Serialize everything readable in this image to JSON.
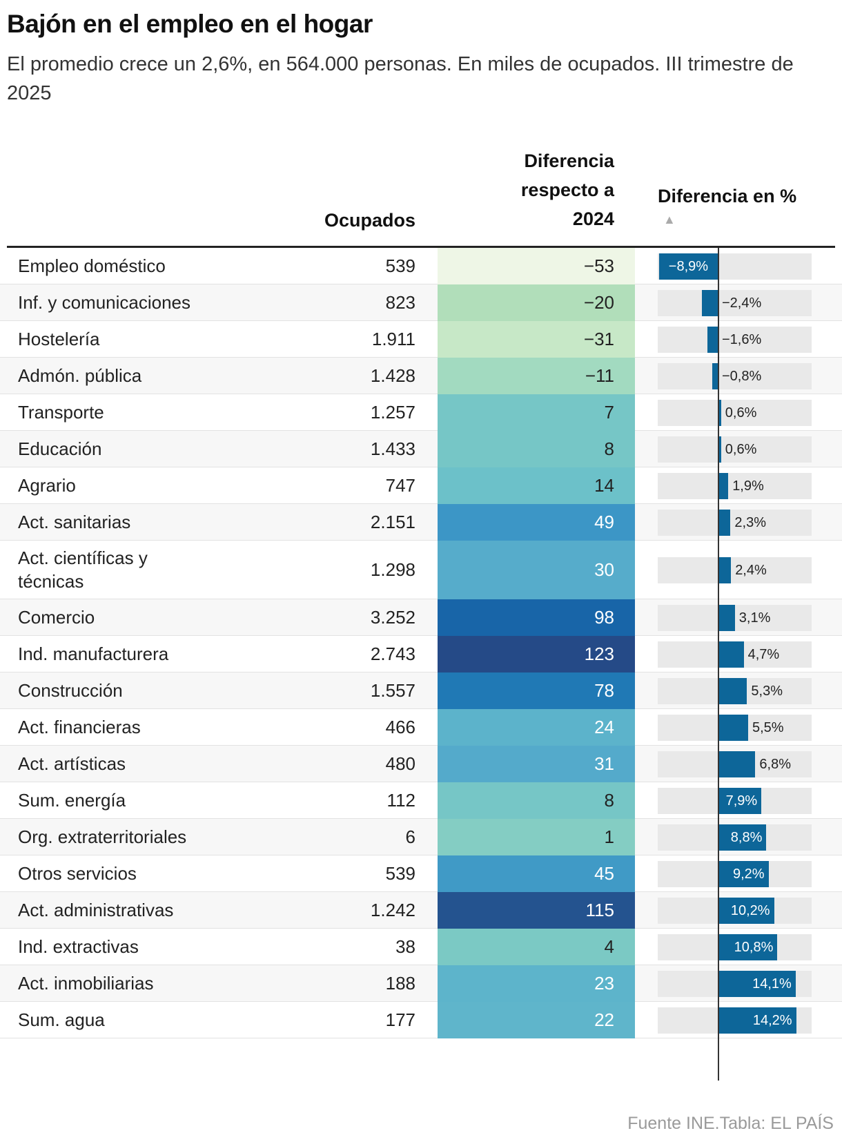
{
  "title": "Bajón en el empleo en el hogar",
  "subtitle": "El promedio crece un 2,6%, en 564.000 personas. En miles de ocupados. III trimestre de 2025",
  "headers": {
    "occupied": "Ocupados",
    "difference": "Diferencia respecto a 2024",
    "difference_pct": "Diferencia en %",
    "sort_icon": "▲"
  },
  "source": "Fuente INE.Tabla: EL PAÍS",
  "colors": {
    "bar": "#0d6699",
    "bar_bg": "#e9e9e9",
    "axis": "#333333"
  },
  "chart_data": {
    "type": "table",
    "columns": [
      "",
      "Ocupados",
      "Diferencia respecto a 2024",
      "Diferencia en %"
    ],
    "pct_range": [
      -10,
      17
    ],
    "rows": [
      {
        "sector": "Empleo doméstico",
        "occupied": "539",
        "diff": "−53",
        "diff_value": -53,
        "pct_label": "−8,9%",
        "pct": -8.9,
        "heat_color": "#eef6e6",
        "diff_text_color": "#222222"
      },
      {
        "sector": "Inf. y comunicaciones",
        "occupied": "823",
        "diff": "−20",
        "diff_value": -20,
        "pct_label": "−2,4%",
        "pct": -2.4,
        "heat_color": "#b1deba",
        "diff_text_color": "#222222"
      },
      {
        "sector": "Hostelería",
        "occupied": "1.911",
        "diff": "−31",
        "diff_value": -31,
        "pct_label": "−1,6%",
        "pct": -1.6,
        "heat_color": "#c7e8c7",
        "diff_text_color": "#222222"
      },
      {
        "sector": "Admón. pública",
        "occupied": "1.428",
        "diff": "−11",
        "diff_value": -11,
        "pct_label": "−0,8%",
        "pct": -0.8,
        "heat_color": "#a2dac0",
        "diff_text_color": "#222222"
      },
      {
        "sector": "Transporte",
        "occupied": "1.257",
        "diff": "7",
        "diff_value": 7,
        "pct_label": "0,6%",
        "pct": 0.6,
        "heat_color": "#76c6c6",
        "diff_text_color": "#222222"
      },
      {
        "sector": "Educación",
        "occupied": "1.433",
        "diff": "8",
        "diff_value": 8,
        "pct_label": "0,6%",
        "pct": 0.6,
        "heat_color": "#76c6c6",
        "diff_text_color": "#222222"
      },
      {
        "sector": "Agrario",
        "occupied": "747",
        "diff": "14",
        "diff_value": 14,
        "pct_label": "1,9%",
        "pct": 1.9,
        "heat_color": "#6cc1c9",
        "diff_text_color": "#222222"
      },
      {
        "sector": "Act. sanitarias",
        "occupied": "2.151",
        "diff": "49",
        "diff_value": 49,
        "pct_label": "2,3%",
        "pct": 2.3,
        "heat_color": "#3c96c6",
        "diff_text_color": "#ffffff"
      },
      {
        "sector": "Act. científicas y técnicas",
        "occupied": "1.298",
        "diff": "30",
        "diff_value": 30,
        "pct_label": "2,4%",
        "pct": 2.4,
        "heat_color": "#56accb",
        "diff_text_color": "#ffffff"
      },
      {
        "sector": "Comercio",
        "occupied": "3.252",
        "diff": "98",
        "diff_value": 98,
        "pct_label": "3,1%",
        "pct": 3.1,
        "heat_color": "#1865a8",
        "diff_text_color": "#ffffff"
      },
      {
        "sector": "Ind. manufacturera",
        "occupied": "2.743",
        "diff": "123",
        "diff_value": 123,
        "pct_label": "4,7%",
        "pct": 4.7,
        "heat_color": "#254a87",
        "diff_text_color": "#ffffff"
      },
      {
        "sector": "Construcción",
        "occupied": "1.557",
        "diff": "78",
        "diff_value": 78,
        "pct_label": "5,3%",
        "pct": 5.3,
        "heat_color": "#2079b5",
        "diff_text_color": "#ffffff"
      },
      {
        "sector": "Act. financieras",
        "occupied": "466",
        "diff": "24",
        "diff_value": 24,
        "pct_label": "5,5%",
        "pct": 5.5,
        "heat_color": "#5cb3cb",
        "diff_text_color": "#ffffff"
      },
      {
        "sector": "Act. artísticas",
        "occupied": "480",
        "diff": "31",
        "diff_value": 31,
        "pct_label": "6,8%",
        "pct": 6.8,
        "heat_color": "#54aacb",
        "diff_text_color": "#ffffff"
      },
      {
        "sector": "Sum. energía",
        "occupied": "112",
        "diff": "8",
        "diff_value": 8,
        "pct_label": "7,9%",
        "pct": 7.9,
        "heat_color": "#76c6c6",
        "diff_text_color": "#222222"
      },
      {
        "sector": "Org. extraterritoriales",
        "occupied": "6",
        "diff": "1",
        "diff_value": 1,
        "pct_label": "8,8%",
        "pct": 8.8,
        "heat_color": "#84cdc3",
        "diff_text_color": "#222222"
      },
      {
        "sector": "Otros servicios",
        "occupied": "539",
        "diff": "45",
        "diff_value": 45,
        "pct_label": "9,2%",
        "pct": 9.2,
        "heat_color": "#409ac6",
        "diff_text_color": "#ffffff"
      },
      {
        "sector": "Act. administrativas",
        "occupied": "1.242",
        "diff": "115",
        "diff_value": 115,
        "pct_label": "10,2%",
        "pct": 10.2,
        "heat_color": "#24538f",
        "diff_text_color": "#ffffff"
      },
      {
        "sector": "Ind. extractivas",
        "occupied": "38",
        "diff": "4",
        "diff_value": 4,
        "pct_label": "10,8%",
        "pct": 10.8,
        "heat_color": "#7bc9c4",
        "diff_text_color": "#222222"
      },
      {
        "sector": "Act. inmobiliarias",
        "occupied": "188",
        "diff": "23",
        "diff_value": 23,
        "pct_label": "14,1%",
        "pct": 14.1,
        "heat_color": "#5db4cb",
        "diff_text_color": "#ffffff"
      },
      {
        "sector": "Sum. agua",
        "occupied": "177",
        "diff": "22",
        "diff_value": 22,
        "pct_label": "14,2%",
        "pct": 14.2,
        "heat_color": "#5fb5cb",
        "diff_text_color": "#ffffff"
      }
    ]
  }
}
